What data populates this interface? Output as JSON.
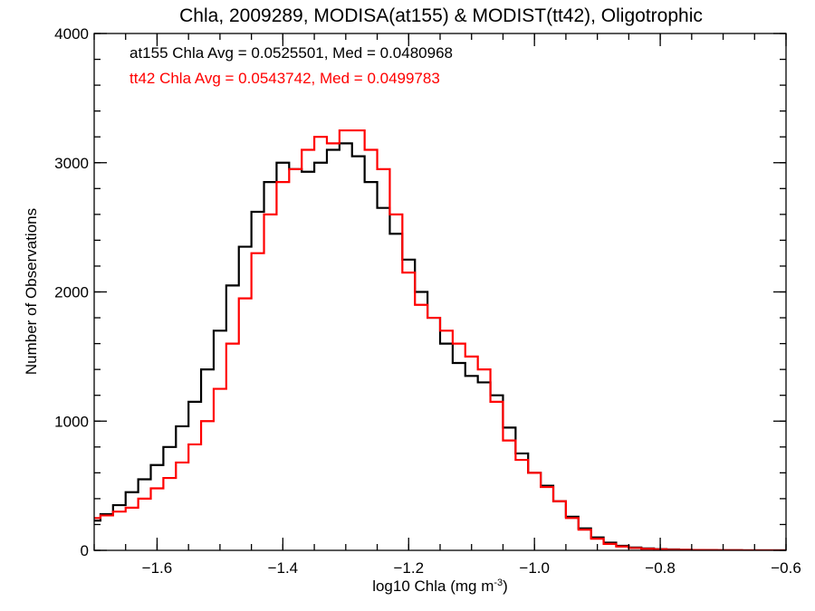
{
  "colors": {
    "at155": "#000000",
    "tt42": "#ff0000"
  },
  "chart_data": {
    "type": "line",
    "step": true,
    "title": "Chla, 2009289, MODISA(at155) & MODIST(tt42), Oligotrophic",
    "xlabel": "log10 Chla (mg m",
    "xlabel_sup": "-3",
    "xlabel_tail": ")",
    "ylabel": "Number of Observations",
    "xlim": [
      -1.7,
      -0.6
    ],
    "ylim": [
      0,
      4000
    ],
    "xticks": [
      -1.6,
      -1.4,
      -1.2,
      -1.0,
      -0.8,
      -0.6
    ],
    "xtick_labels": [
      "−1.6",
      "−1.4",
      "−1.2",
      "−1.0",
      "−0.8",
      "−0.6"
    ],
    "yticks": [
      0,
      1000,
      2000,
      3000,
      4000
    ],
    "ytick_labels": [
      "0",
      "1000",
      "2000",
      "3000",
      "4000"
    ],
    "grid": false,
    "annotations": [
      {
        "text": "at155 Chla Avg = 0.0525501, Med = 0.0480968",
        "color": "#000000"
      },
      {
        "text": "tt42 Chla Avg = 0.0543742, Med = 0.0499783",
        "color": "#ff0000"
      }
    ],
    "series": [
      {
        "color": "#000000",
        "x": [
          -1.7,
          -1.68,
          -1.66,
          -1.64,
          -1.62,
          -1.6,
          -1.58,
          -1.56,
          -1.54,
          -1.52,
          -1.5,
          -1.48,
          -1.46,
          -1.44,
          -1.42,
          -1.4,
          -1.38,
          -1.36,
          -1.34,
          -1.32,
          -1.3,
          -1.28,
          -1.26,
          -1.24,
          -1.22,
          -1.2,
          -1.18,
          -1.16,
          -1.14,
          -1.12,
          -1.1,
          -1.08,
          -1.06,
          -1.04,
          -1.02,
          -1.0,
          -0.98,
          -0.96,
          -0.94,
          -0.92,
          -0.9,
          -0.88,
          -0.86,
          -0.84,
          -0.82,
          -0.8,
          -0.78,
          -0.76,
          -0.74,
          -0.72,
          -0.7,
          -0.68,
          -0.66,
          -0.64,
          -0.62,
          -0.6
        ],
        "values": [
          230,
          280,
          350,
          450,
          550,
          660,
          800,
          960,
          1150,
          1400,
          1700,
          2050,
          2350,
          2620,
          2850,
          3000,
          2950,
          2930,
          3000,
          3100,
          3150,
          3050,
          2850,
          2650,
          2450,
          2250,
          2000,
          1800,
          1600,
          1450,
          1350,
          1300,
          1200,
          950,
          750,
          600,
          500,
          380,
          260,
          170,
          100,
          60,
          35,
          22,
          15,
          10,
          7,
          5,
          3,
          2,
          1,
          1,
          0,
          0,
          0,
          0
        ]
      },
      {
        "color": "#ff0000",
        "x": [
          -1.7,
          -1.68,
          -1.66,
          -1.64,
          -1.62,
          -1.6,
          -1.58,
          -1.56,
          -1.54,
          -1.52,
          -1.5,
          -1.48,
          -1.46,
          -1.44,
          -1.42,
          -1.4,
          -1.38,
          -1.36,
          -1.34,
          -1.32,
          -1.3,
          -1.28,
          -1.26,
          -1.24,
          -1.22,
          -1.2,
          -1.18,
          -1.16,
          -1.14,
          -1.12,
          -1.1,
          -1.08,
          -1.06,
          -1.04,
          -1.02,
          -1.0,
          -0.98,
          -0.96,
          -0.94,
          -0.92,
          -0.9,
          -0.88,
          -0.86,
          -0.84,
          -0.82,
          -0.8,
          -0.78,
          -0.76,
          -0.74,
          -0.72,
          -0.7,
          -0.68,
          -0.66,
          -0.64,
          -0.62,
          -0.6
        ],
        "values": [
          250,
          270,
          300,
          330,
          400,
          480,
          560,
          680,
          820,
          1000,
          1250,
          1600,
          1950,
          2300,
          2600,
          2850,
          2950,
          3100,
          3200,
          3150,
          3250,
          3250,
          3100,
          2950,
          2600,
          2150,
          1900,
          1800,
          1700,
          1600,
          1500,
          1400,
          1150,
          850,
          700,
          600,
          490,
          380,
          250,
          160,
          90,
          50,
          30,
          18,
          12,
          8,
          5,
          4,
          3,
          2,
          1,
          1,
          0,
          0,
          0,
          0
        ]
      }
    ]
  }
}
